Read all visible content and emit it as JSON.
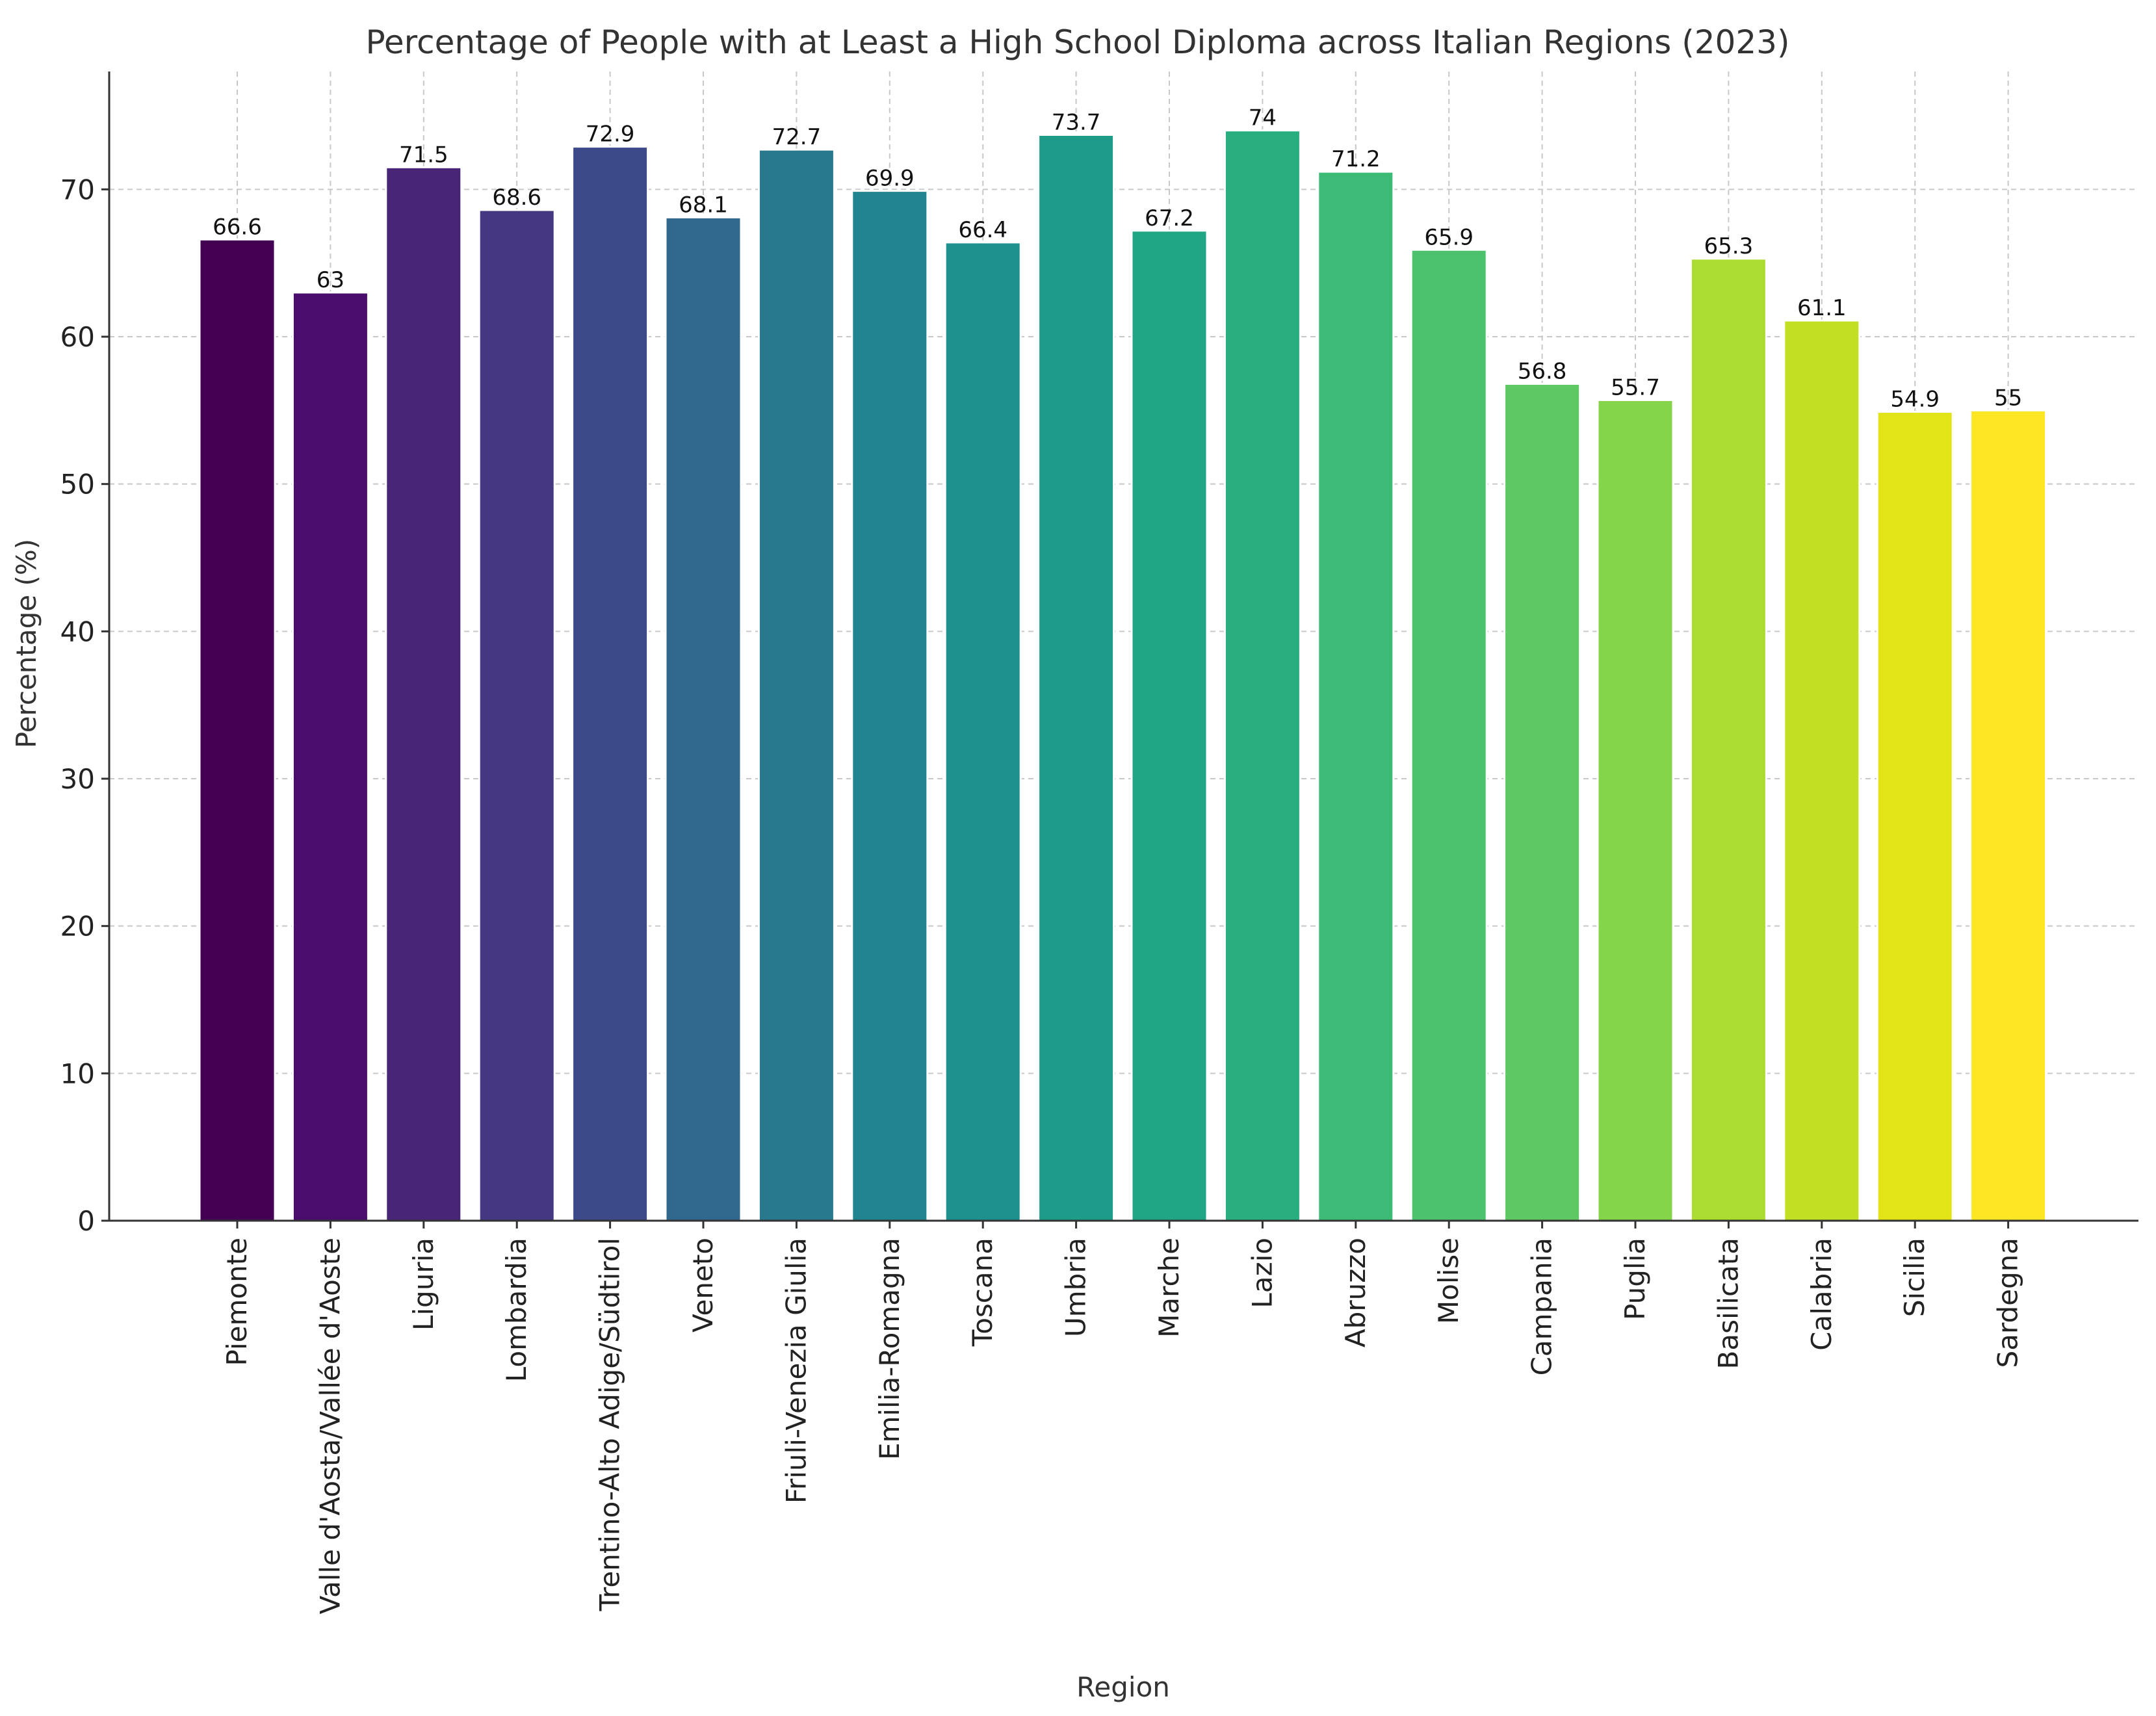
{
  "chart_data": {
    "type": "bar",
    "title": "Percentage of People with at Least a High School Diploma across Italian Regions (2023)",
    "xlabel": "Region",
    "ylabel": "Percentage (%)",
    "ylim": [
      0,
      78
    ],
    "yticks": [
      0,
      10,
      20,
      30,
      40,
      50,
      60,
      70
    ],
    "grid": true,
    "categories": [
      "Piemonte",
      "Valle d'Aosta/Vallée d'Aoste",
      "Liguria",
      "Lombardia",
      "Trentino-Alto Adige/Südtirol",
      "Veneto",
      "Friuli-Venezia Giulia",
      "Emilia-Romagna",
      "Toscana",
      "Umbria",
      "Marche",
      "Lazio",
      "Abruzzo",
      "Molise",
      "Campania",
      "Puglia",
      "Basilicata",
      "Calabria",
      "Sicilia",
      "Sardegna"
    ],
    "values": [
      66.6,
      63,
      71.5,
      68.6,
      72.9,
      68.1,
      72.7,
      69.9,
      66.4,
      73.7,
      67.2,
      74,
      71.2,
      65.9,
      56.8,
      55.7,
      65.3,
      61.1,
      54.9,
      55
    ],
    "value_labels": [
      "66.6",
      "63",
      "71.5",
      "68.6",
      "72.9",
      "68.1",
      "72.7",
      "69.9",
      "66.4",
      "73.7",
      "67.2",
      "74",
      "71.2",
      "65.9",
      "56.8",
      "55.7",
      "65.3",
      "61.1",
      "54.9",
      "55"
    ],
    "colors": [
      "#440154",
      "#4b0d6b",
      "#482576",
      "#453781",
      "#3d4a89",
      "#31688e",
      "#29798e",
      "#22848e",
      "#1f918c",
      "#1e9c89",
      "#21a685",
      "#29af7f",
      "#3bbb75",
      "#4cc26c",
      "#5ec962",
      "#85d54a",
      "#aadc32",
      "#c2df23",
      "#e2e418",
      "#fde725"
    ]
  }
}
